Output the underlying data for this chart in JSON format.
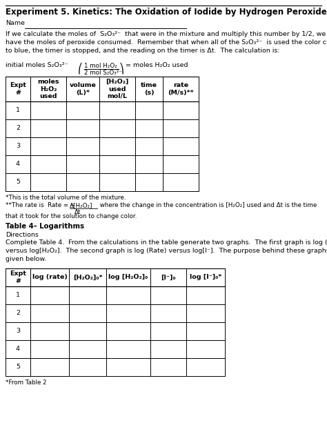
{
  "title_bold": "Experiment 5.",
  "title_rest": "Kinetics: The Oxidation of Iodide by Hydrogen Peroxide",
  "bg_color": "#ffffff",
  "text_color": "#000000",
  "font_size": 6.8,
  "title_font_size": 8.5,
  "table1_col_widths": [
    36,
    52,
    48,
    52,
    40,
    52
  ],
  "table1_col_headers": [
    "Expt\n#",
    "moles\nH₂O₂\nused",
    "volume\n(L)*",
    "[H₂O₂]\nused\nmol/L",
    "time\n(s)",
    "rate\n(M/s)**"
  ],
  "table2_col_widths": [
    36,
    56,
    54,
    64,
    52,
    56
  ],
  "table2_col_headers": [
    "Expt\n#",
    "log (rate)",
    "[H₂O₂]₀*",
    "log [H₂O₂]₀",
    "[I⁻]₀",
    "log [I⁻]₀*"
  ]
}
